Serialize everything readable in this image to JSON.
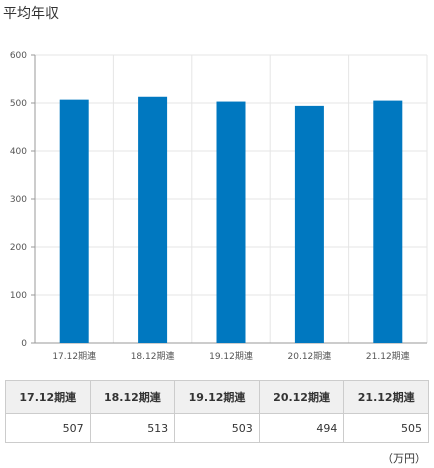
{
  "title": "平均年収",
  "unit": "（万円）",
  "colors": {
    "bar": "#0078c0",
    "grid": "#e5e5e5",
    "axis": "#999999"
  },
  "chart_data": {
    "type": "bar",
    "categories": [
      "17.12期連",
      "18.12期連",
      "19.12期連",
      "20.12期連",
      "21.12期連"
    ],
    "values": [
      507,
      513,
      503,
      494,
      505
    ],
    "ylim": [
      0,
      600
    ],
    "yticks": [
      0,
      100,
      200,
      300,
      400,
      500,
      600
    ],
    "grid": true,
    "xlabel": "",
    "ylabel": ""
  },
  "table": {
    "headers": [
      "17.12期連",
      "18.12期連",
      "19.12期連",
      "20.12期連",
      "21.12期連"
    ],
    "values": [
      "507",
      "513",
      "503",
      "494",
      "505"
    ]
  }
}
